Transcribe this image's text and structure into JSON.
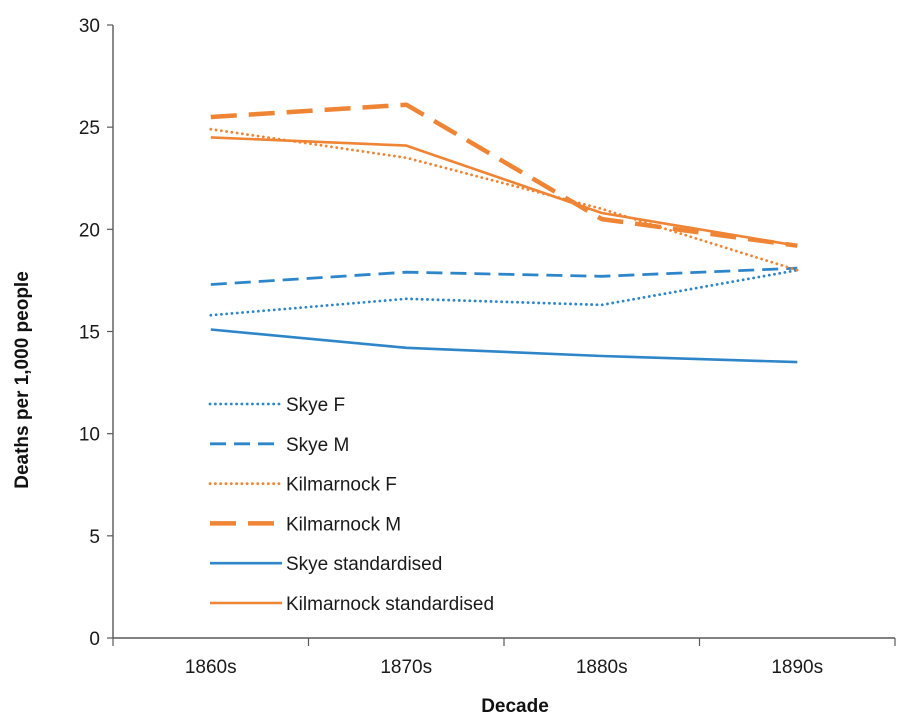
{
  "chart_data": {
    "type": "line",
    "title": "",
    "xlabel": "Decade",
    "ylabel": "Deaths per 1,000 people",
    "categories": [
      "1860s",
      "1870s",
      "1880s",
      "1890s"
    ],
    "ylim": [
      0,
      30
    ],
    "yticks": [
      0,
      5,
      10,
      15,
      20,
      25,
      30
    ],
    "grid": false,
    "legend_position": "left-center",
    "series": [
      {
        "name": "Skye F",
        "values": [
          15.8,
          16.6,
          16.3,
          18.0
        ],
        "color": "#2e86c9",
        "style": "dotted"
      },
      {
        "name": "Skye M",
        "values": [
          17.3,
          17.9,
          17.7,
          18.1
        ],
        "color": "#2e86c9",
        "style": "dashed"
      },
      {
        "name": "Kilmarnock F",
        "values": [
          24.9,
          23.5,
          21.0,
          18.0
        ],
        "color": "#ee8434",
        "style": "dotted"
      },
      {
        "name": "Kilmarnock M",
        "values": [
          25.5,
          26.1,
          20.5,
          19.2
        ],
        "color": "#ee8434",
        "style": "longdash"
      },
      {
        "name": "Skye standardised",
        "values": [
          15.1,
          14.2,
          13.8,
          13.5
        ],
        "color": "#2e86c9",
        "style": "solid"
      },
      {
        "name": "Kilmarnock standardised",
        "values": [
          24.5,
          24.1,
          20.8,
          19.2
        ],
        "color": "#ee8434",
        "style": "solid"
      }
    ]
  }
}
